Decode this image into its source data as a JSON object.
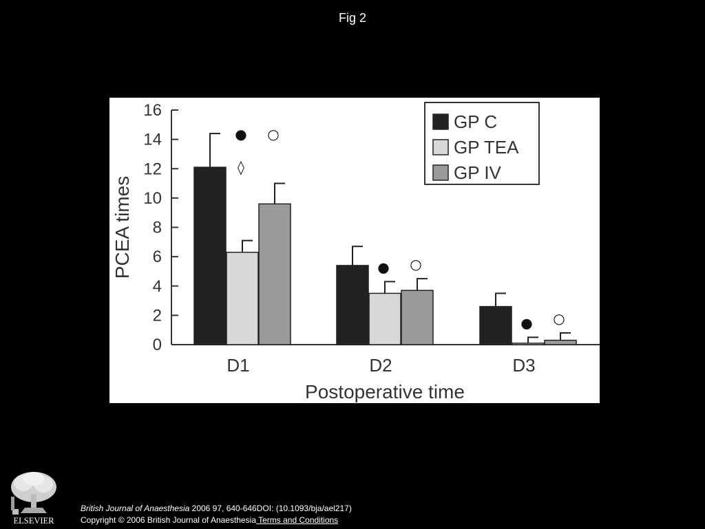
{
  "page": {
    "title": "Fig 2"
  },
  "chart_data": {
    "type": "bar",
    "categories": [
      "D1",
      "D2",
      "D3"
    ],
    "series": [
      {
        "name": "GP C",
        "values": [
          12.1,
          5.4,
          2.6
        ],
        "errors": [
          2.3,
          1.3,
          0.9
        ],
        "color": "#222222"
      },
      {
        "name": "GP TEA",
        "values": [
          6.3,
          3.5,
          0.1
        ],
        "errors": [
          0.8,
          0.8,
          0.4
        ],
        "color": "#d8d8d8"
      },
      {
        "name": "GP IV",
        "values": [
          9.6,
          3.7,
          0.3
        ],
        "errors": [
          1.4,
          0.8,
          0.5
        ],
        "color": "#9a9a9a"
      }
    ],
    "xlabel": "Postoperative time",
    "ylabel": "PCEA times",
    "ylim": [
      0,
      16
    ],
    "yticks": [
      "0",
      "2",
      "4",
      "6",
      "8",
      "10",
      "12",
      "14",
      "16"
    ],
    "legend_position": "top-right",
    "grid": false,
    "annotations": [
      {
        "category": "D1",
        "series": "GP TEA",
        "symbols": [
          "●",
          "◊"
        ]
      },
      {
        "category": "D1",
        "series": "GP IV",
        "symbols": [
          "○"
        ]
      },
      {
        "category": "D2",
        "series": "GP TEA",
        "symbols": [
          "●"
        ]
      },
      {
        "category": "D2",
        "series": "GP IV",
        "symbols": [
          "○"
        ]
      },
      {
        "category": "D3",
        "series": "GP TEA",
        "symbols": [
          "●"
        ]
      },
      {
        "category": "D3",
        "series": "GP IV",
        "symbols": [
          "○"
        ]
      }
    ]
  },
  "footer": {
    "publisher_logo_text": "ELSEVIER",
    "journal": "British Journal of Anaesthesia",
    "citation_rest": " 2006 97, 640-646DOI: (10.1093/bja/ael217)",
    "copyright": "Copyright © 2006 British Journal of Anaesthesia",
    "terms_link": " Terms and Conditions"
  }
}
